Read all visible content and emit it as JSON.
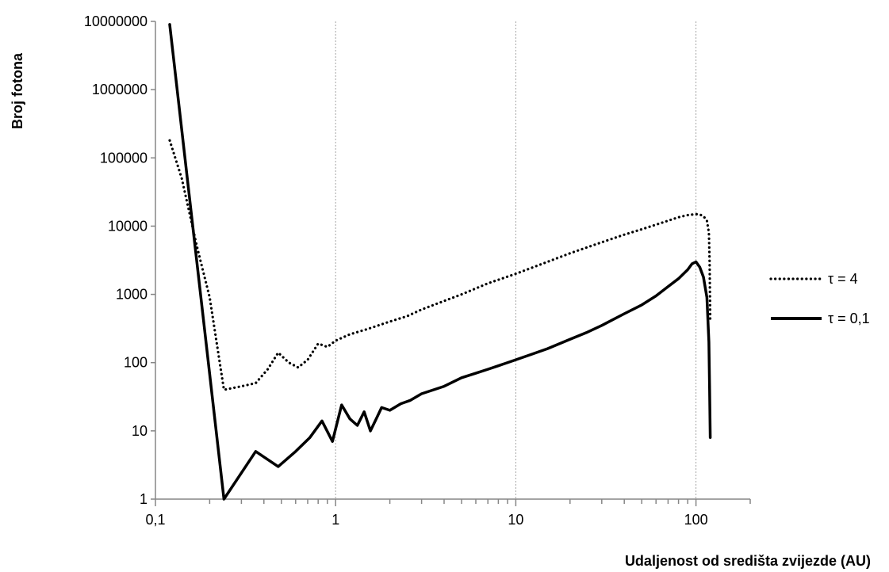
{
  "chart_data": {
    "type": "line",
    "xlabel": "Udaljenost od središta zvijezde (AU)",
    "ylabel": "Broj fotona",
    "x_scale": "log",
    "y_scale": "log",
    "xlim": [
      0.1,
      200
    ],
    "ylim": [
      1,
      10000000
    ],
    "x_tick_labels": [
      "0,1",
      "1",
      "10",
      "100"
    ],
    "x_tick_values": [
      0.1,
      1,
      10,
      100
    ],
    "y_tick_labels": [
      "1",
      "10",
      "100",
      "1000",
      "10000",
      "100000",
      "1000000",
      "10000000"
    ],
    "y_tick_values": [
      1,
      10,
      100,
      1000,
      10000,
      100000,
      1000000,
      10000000
    ],
    "grid": "vertical major gridlines",
    "legend_position": "right",
    "series": [
      {
        "name": "τ = 4",
        "style": "dotted",
        "x": [
          0.12,
          0.14,
          0.17,
          0.2,
          0.24,
          0.3,
          0.36,
          0.42,
          0.48,
          0.55,
          0.62,
          0.7,
          0.8,
          0.9,
          1.0,
          1.2,
          1.5,
          2.0,
          2.5,
          3.0,
          4.0,
          5.0,
          7.0,
          10.0,
          15.0,
          20.0,
          30.0,
          40.0,
          50.0,
          60.0,
          70.0,
          80.0,
          90.0,
          100.0,
          105.0,
          110.0,
          115.0,
          118.0,
          119.0,
          120.0
        ],
        "values": [
          180000,
          50000,
          5000,
          900,
          40,
          45,
          50,
          80,
          140,
          100,
          85,
          110,
          190,
          170,
          210,
          260,
          310,
          400,
          480,
          600,
          800,
          1000,
          1450,
          2000,
          3000,
          4000,
          5800,
          7500,
          9000,
          10500,
          12000,
          13500,
          14500,
          15000,
          14800,
          14000,
          12000,
          8000,
          3000,
          400
        ]
      },
      {
        "name": "τ = 0,1",
        "style": "solid",
        "x": [
          0.12,
          0.24,
          0.36,
          0.48,
          0.6,
          0.72,
          0.84,
          0.96,
          1.08,
          1.2,
          1.32,
          1.44,
          1.56,
          1.68,
          1.8,
          2.0,
          2.3,
          2.6,
          3.0,
          3.5,
          4.0,
          5.0,
          6.0,
          7.0,
          8.0,
          10.0,
          12.0,
          15.0,
          20.0,
          25.0,
          30.0,
          40.0,
          50.0,
          60.0,
          70.0,
          80.0,
          90.0,
          95.0,
          100.0,
          105.0,
          110.0,
          115.0,
          118.0,
          119.0,
          120.0
        ],
        "values": [
          9000000,
          1,
          5,
          3,
          5,
          8,
          14,
          7,
          24,
          15,
          12,
          19,
          10,
          15,
          22,
          20,
          25,
          28,
          35,
          40,
          45,
          60,
          70,
          80,
          90,
          110,
          130,
          160,
          220,
          280,
          350,
          520,
          700,
          950,
          1300,
          1700,
          2300,
          2800,
          3000,
          2500,
          1800,
          900,
          200,
          40,
          8
        ]
      }
    ]
  }
}
